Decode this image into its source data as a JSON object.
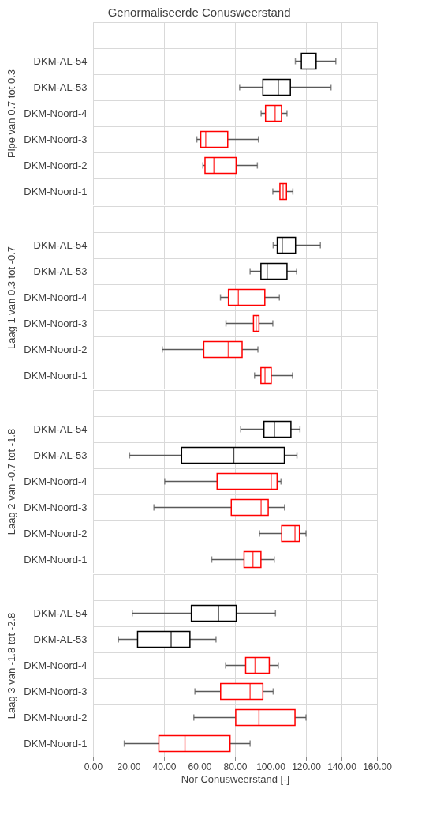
{
  "chart_data": [
    {
      "type": "box",
      "orientation": "horizontal",
      "title": "Genormaliseerde Conusweerstand",
      "ylabel": "Pipe van 0.7 tot 0.3",
      "tick_labels": "y",
      "grid": true,
      "xlim": [
        0,
        160
      ],
      "xticks": [
        {
          "value": 0,
          "label": null
        },
        {
          "value": 20,
          "label": null
        },
        {
          "value": 40,
          "label": null
        },
        {
          "value": 60,
          "label": null
        },
        {
          "value": 80,
          "label": null
        },
        {
          "value": 100,
          "label": null
        },
        {
          "value": 120,
          "label": null
        },
        {
          "value": 140,
          "label": null
        },
        {
          "value": 160,
          "label": null
        }
      ],
      "categories": [
        "DKM-AL-54",
        "DKM-AL-53",
        "DKM-Noord-4",
        "DKM-Noord-3",
        "DKM-Noord-2",
        "DKM-Noord-1"
      ],
      "colors": [
        "#000000",
        "#000000",
        "#ff0000",
        "#ff0000",
        "#ff0000",
        "#ff0000"
      ],
      "boxes": [
        {
          "low": 114,
          "q1": 117.4,
          "median": 125.3,
          "q3": 125.7,
          "high": 136.8
        },
        {
          "low": 82.6,
          "q1": 95.7,
          "median": 104.4,
          "q3": 111.2,
          "high": 134.1
        },
        {
          "low": 94.7,
          "q1": 97.2,
          "median": 102.6,
          "q3": 106.2,
          "high": 109.3
        },
        {
          "low": 58.5,
          "q1": 60.7,
          "median": 63.5,
          "q3": 75.9,
          "high": 93.2
        },
        {
          "low": 61.9,
          "q1": 63.1,
          "median": 68.1,
          "q3": 80.6,
          "high": 92.6
        },
        {
          "low": 101.3,
          "q1": 105.3,
          "median": 107.1,
          "q3": 109,
          "high": 112.6
        }
      ]
    },
    {
      "type": "box",
      "orientation": "horizontal",
      "ylabel": "Laag 1 van 0.3 tot -0.7",
      "tick_labels": "y",
      "grid": true,
      "xlim": [
        0,
        160
      ],
      "xticks": [
        {
          "value": 0,
          "label": null
        },
        {
          "value": 20,
          "label": null
        },
        {
          "value": 40,
          "label": null
        },
        {
          "value": 60,
          "label": null
        },
        {
          "value": 80,
          "label": null
        },
        {
          "value": 100,
          "label": null
        },
        {
          "value": 120,
          "label": null
        },
        {
          "value": 140,
          "label": null
        },
        {
          "value": 160,
          "label": null
        }
      ],
      "categories": [
        "DKM-AL-54",
        "DKM-AL-53",
        "DKM-Noord-4",
        "DKM-Noord-3",
        "DKM-Noord-2",
        "DKM-Noord-1"
      ],
      "colors": [
        "#000000",
        "#000000",
        "#ff0000",
        "#ff0000",
        "#ff0000",
        "#ff0000"
      ],
      "boxes": [
        {
          "low": 101.5,
          "q1": 103.8,
          "median": 106.6,
          "q3": 114.1,
          "high": 128.1
        },
        {
          "low": 88.5,
          "q1": 94.6,
          "median": 98.1,
          "q3": 109.3,
          "high": 114.7
        },
        {
          "low": 71.8,
          "q1": 76.3,
          "median": 81.9,
          "q3": 96.8,
          "high": 105
        },
        {
          "low": 74.9,
          "q1": 90.4,
          "median": 91.9,
          "q3": 93.5,
          "high": 101.3
        },
        {
          "low": 39,
          "q1": 62.4,
          "median": 76.2,
          "q3": 84,
          "high": 92.9
        },
        {
          "low": 91,
          "q1": 94.6,
          "median": 96.9,
          "q3": 100.4,
          "high": 112.4
        }
      ]
    },
    {
      "type": "box",
      "orientation": "horizontal",
      "ylabel": "Laag 2 van -0.7 tot -1.8",
      "tick_labels": "y",
      "grid": true,
      "xlim": [
        0,
        160
      ],
      "xticks": [
        {
          "value": 0,
          "label": null
        },
        {
          "value": 20,
          "label": null
        },
        {
          "value": 40,
          "label": null
        },
        {
          "value": 60,
          "label": null
        },
        {
          "value": 80,
          "label": null
        },
        {
          "value": 100,
          "label": null
        },
        {
          "value": 120,
          "label": null
        },
        {
          "value": 140,
          "label": null
        },
        {
          "value": 160,
          "label": null
        }
      ],
      "categories": [
        "DKM-AL-54",
        "DKM-AL-53",
        "DKM-Noord-4",
        "DKM-Noord-3",
        "DKM-Noord-2",
        "DKM-Noord-1"
      ],
      "colors": [
        "#000000",
        "#000000",
        "#ff0000",
        "#ff0000",
        "#ff0000",
        "#ff0000"
      ],
      "boxes": [
        {
          "low": 83.2,
          "q1": 96.3,
          "median": 102.2,
          "q3": 111.5,
          "high": 116.6
        },
        {
          "low": 20.6,
          "q1": 49.9,
          "median": 79.3,
          "q3": 107.8,
          "high": 114.9
        },
        {
          "low": 40.4,
          "q1": 69.9,
          "median": 100.4,
          "q3": 103.7,
          "high": 105.9
        },
        {
          "low": 34.3,
          "q1": 77.9,
          "median": 94.7,
          "q3": 98.7,
          "high": 107.9
        },
        {
          "low": 93.8,
          "q1": 106.3,
          "median": 113.8,
          "q3": 116.3,
          "high": 120
        },
        {
          "low": 66.9,
          "q1": 85.1,
          "median": 90.1,
          "q3": 94.6,
          "high": 102.1
        }
      ]
    },
    {
      "type": "box",
      "orientation": "horizontal",
      "ylabel": "Laag 3 van -1.8 tot -2.8",
      "xlabel": "Nor Conusweerstand [-]",
      "grid": true,
      "xlim": [
        0,
        160
      ],
      "xticks": [
        {
          "value": 0,
          "label": "0.00"
        },
        {
          "value": 20,
          "label": "20.00"
        },
        {
          "value": 40,
          "label": "40.00"
        },
        {
          "value": 60,
          "label": "60.00"
        },
        {
          "value": 80,
          "label": "80.00"
        },
        {
          "value": 100,
          "label": "100.00"
        },
        {
          "value": 120,
          "label": "120.00"
        },
        {
          "value": 140,
          "label": "140.00"
        },
        {
          "value": 160,
          "label": "160.00"
        }
      ],
      "categories": [
        "DKM-AL-54",
        "DKM-AL-53",
        "DKM-Noord-4",
        "DKM-Noord-3",
        "DKM-Noord-2",
        "DKM-Noord-1"
      ],
      "colors": [
        "#000000",
        "#000000",
        "#ff0000",
        "#ff0000",
        "#ff0000",
        "#ff0000"
      ],
      "boxes": [
        {
          "low": 22.1,
          "q1": 55.4,
          "median": 70.7,
          "q3": 80.7,
          "high": 102.8
        },
        {
          "low": 14.3,
          "q1": 25.1,
          "median": 44,
          "q3": 54.6,
          "high": 69.3
        },
        {
          "low": 74.7,
          "q1": 86,
          "median": 91.3,
          "q3": 99.3,
          "high": 104.4
        },
        {
          "low": 57.4,
          "q1": 71.9,
          "median": 88.5,
          "q3": 95.7,
          "high": 101.5
        },
        {
          "low": 56.8,
          "q1": 80.4,
          "median": 93.5,
          "q3": 113.8,
          "high": 120
        },
        {
          "low": 17.6,
          "q1": 37.1,
          "median": 51.8,
          "q3": 77.2,
          "high": 88.5
        }
      ]
    }
  ]
}
